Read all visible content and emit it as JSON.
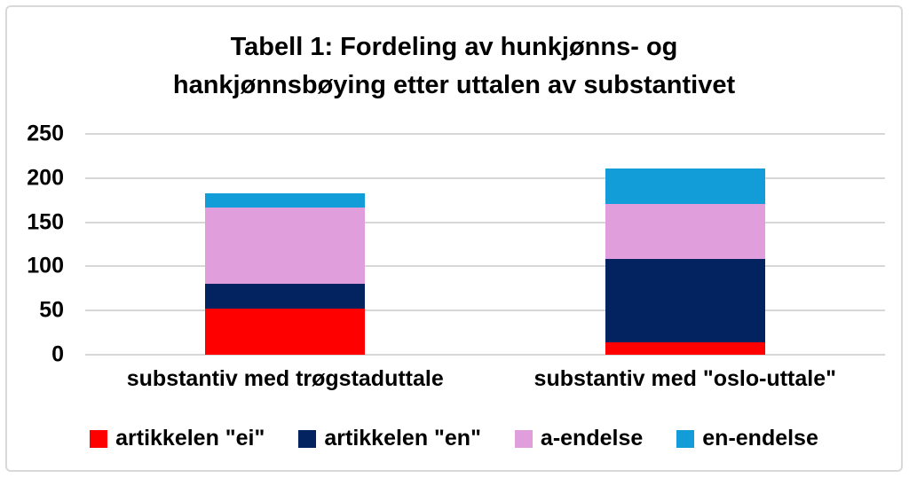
{
  "chart_data": {
    "type": "bar",
    "stacked": true,
    "title_lines": [
      "Tabell 1: Fordeling av hunkjønns- og",
      "hankjønnsbøying etter uttalen av substantivet"
    ],
    "categories": [
      "substantiv med trøgstaduttale",
      "substantiv med \"oslo-uttale\""
    ],
    "series": [
      {
        "name": "artikkelen \"ei\"",
        "color": "#fe0000",
        "values": [
          52,
          14
        ]
      },
      {
        "name": "artikkelen \"en\"",
        "color": "#032260",
        "values": [
          28,
          94
        ]
      },
      {
        "name": "a-endelse",
        "color": "#e19edc",
        "values": [
          87,
          63
        ]
      },
      {
        "name": "en-endelse",
        "color": "#129cd8",
        "values": [
          16,
          40
        ]
      }
    ],
    "ylim": [
      0,
      250
    ],
    "yticks": [
      0,
      50,
      100,
      150,
      200,
      250
    ],
    "grid": true,
    "legend_position": "bottom",
    "bar_totals": [
      183,
      211
    ]
  },
  "colors": {
    "gridline": "#d7d7d7",
    "frame_border": "#d9d9d9",
    "text": "#000000"
  }
}
